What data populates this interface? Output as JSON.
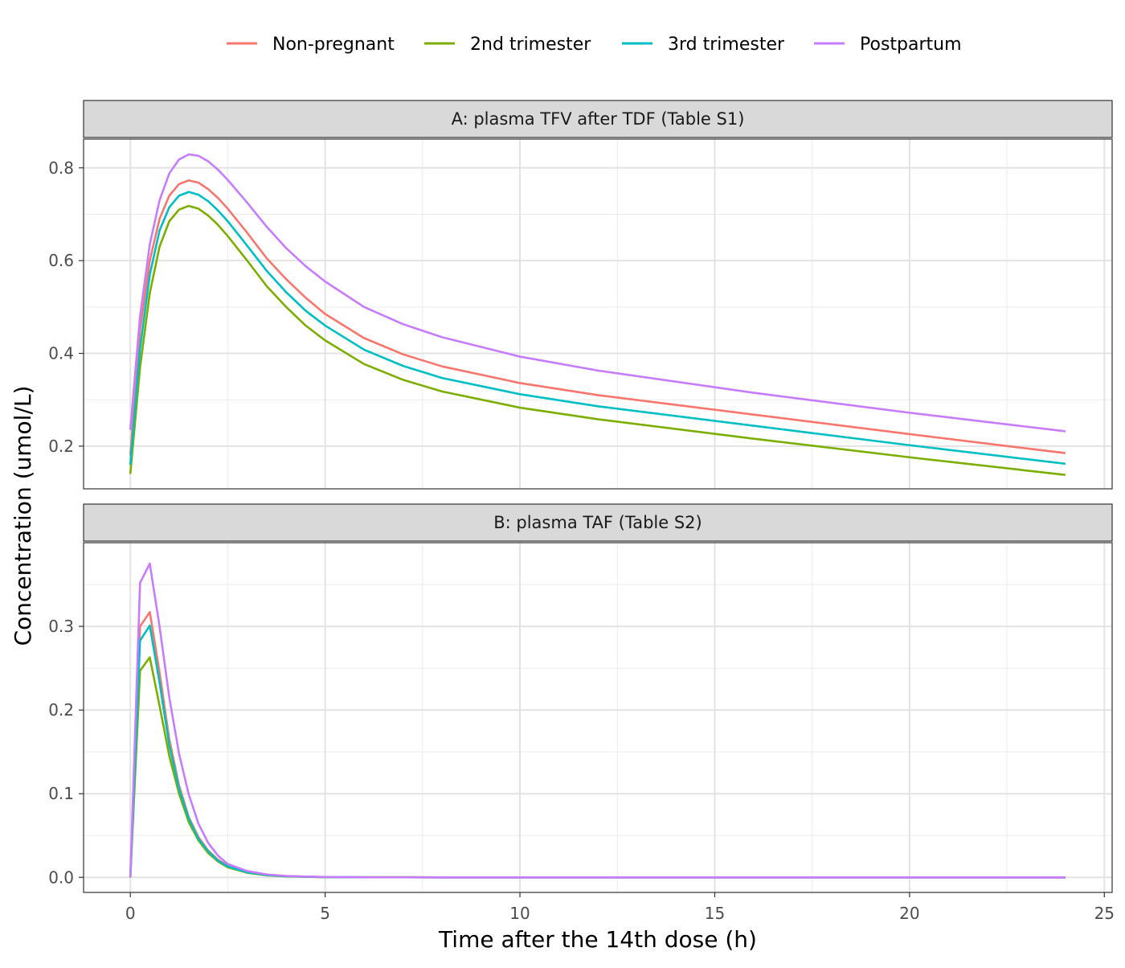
{
  "chart_data": {
    "type": "line",
    "xlabel": "Time after the 14th dose (h)",
    "ylabel": "Concentration (umol/L)",
    "xlim": [
      -1.2,
      25.2
    ],
    "x_ticks": [
      0,
      5,
      10,
      15,
      20,
      25
    ],
    "x_tick_labels": [
      "0",
      "5",
      "10",
      "15",
      "20",
      "25"
    ],
    "grid": true,
    "legend_position": "top",
    "legend": [
      {
        "name": "Non-pregnant",
        "color": "#F8766D"
      },
      {
        "name": "2nd trimester",
        "color": "#7CAE00"
      },
      {
        "name": "3rd trimester",
        "color": "#00BFC4"
      },
      {
        "name": "Postpartum",
        "color": "#C77CFF"
      }
    ],
    "panels": [
      {
        "title": "A: plasma TFV after TDF (Table S1)",
        "ylim": [
          0.108,
          0.862
        ],
        "y_ticks": [
          0.2,
          0.4,
          0.6,
          0.8
        ],
        "y_tick_labels": [
          "0.2",
          "0.4",
          "0.6",
          "0.8"
        ],
        "series": [
          {
            "name": "Non-pregnant",
            "color": "#F8766D",
            "x": [
              0,
              0.25,
              0.5,
              0.75,
              1,
              1.25,
              1.5,
              1.75,
              2,
              2.25,
              2.5,
              3,
              3.5,
              4,
              4.5,
              5,
              6,
              7,
              8,
              10,
              12,
              16,
              20,
              24
            ],
            "y": [
              0.18,
              0.45,
              0.6,
              0.69,
              0.74,
              0.765,
              0.773,
              0.768,
              0.754,
              0.735,
              0.712,
              0.66,
              0.605,
              0.56,
              0.52,
              0.485,
              0.433,
              0.398,
              0.372,
              0.336,
              0.31,
              0.268,
              0.226,
              0.185
            ]
          },
          {
            "name": "2nd trimester",
            "color": "#7CAE00",
            "x": [
              0,
              0.25,
              0.5,
              0.75,
              1,
              1.25,
              1.5,
              1.75,
              2,
              2.25,
              2.5,
              3,
              3.5,
              4,
              4.5,
              5,
              6,
              7,
              8,
              10,
              12,
              16,
              20,
              24
            ],
            "y": [
              0.14,
              0.37,
              0.53,
              0.63,
              0.685,
              0.71,
              0.718,
              0.712,
              0.697,
              0.677,
              0.653,
              0.6,
              0.545,
              0.5,
              0.46,
              0.428,
              0.377,
              0.343,
              0.318,
              0.283,
              0.258,
              0.216,
              0.176,
              0.138
            ]
          },
          {
            "name": "3rd trimester",
            "color": "#00BFC4",
            "x": [
              0,
              0.25,
              0.5,
              0.75,
              1,
              1.25,
              1.5,
              1.75,
              2,
              2.25,
              2.5,
              3,
              3.5,
              4,
              4.5,
              5,
              6,
              7,
              8,
              10,
              12,
              16,
              20,
              24
            ],
            "y": [
              0.16,
              0.41,
              0.57,
              0.665,
              0.715,
              0.74,
              0.748,
              0.742,
              0.728,
              0.708,
              0.685,
              0.632,
              0.578,
              0.532,
              0.492,
              0.46,
              0.408,
              0.373,
              0.347,
              0.312,
              0.286,
              0.244,
              0.202,
              0.162
            ]
          },
          {
            "name": "Postpartum",
            "color": "#C77CFF",
            "x": [
              0,
              0.25,
              0.5,
              0.75,
              1,
              1.25,
              1.5,
              1.75,
              2,
              2.25,
              2.5,
              3,
              3.5,
              4,
              4.5,
              5,
              6,
              7,
              8,
              10,
              12,
              16,
              20,
              24
            ],
            "y": [
              0.235,
              0.48,
              0.635,
              0.73,
              0.788,
              0.818,
              0.829,
              0.826,
              0.814,
              0.796,
              0.774,
              0.725,
              0.673,
              0.627,
              0.588,
              0.555,
              0.5,
              0.463,
              0.435,
              0.393,
              0.363,
              0.315,
              0.272,
              0.232
            ]
          }
        ]
      },
      {
        "title": "B: plasma TAF (Table S2)",
        "ylim": [
          -0.018,
          0.4
        ],
        "y_ticks": [
          0.0,
          0.1,
          0.2,
          0.3
        ],
        "y_tick_labels": [
          "0.0",
          "0.1",
          "0.2",
          "0.3"
        ],
        "series": [
          {
            "name": "Non-pregnant",
            "color": "#F8766D",
            "x": [
              0,
              0.25,
              0.5,
              0.75,
              1,
              1.25,
              1.5,
              1.75,
              2,
              2.25,
              2.5,
              3,
              3.5,
              4,
              5,
              6,
              8,
              12,
              16,
              20,
              24
            ],
            "y": [
              0,
              0.3,
              0.317,
              0.245,
              0.165,
              0.11,
              0.072,
              0.048,
              0.032,
              0.021,
              0.014,
              0.0065,
              0.003,
              0.0014,
              0.0003,
              0.0001,
              0,
              0,
              0,
              0,
              0
            ]
          },
          {
            "name": "2nd trimester",
            "color": "#7CAE00",
            "x": [
              0,
              0.25,
              0.5,
              0.75,
              1,
              1.25,
              1.5,
              1.75,
              2,
              2.25,
              2.5,
              3,
              3.5,
              4,
              5,
              6,
              8,
              12,
              16,
              20,
              24
            ],
            "y": [
              0,
              0.247,
              0.263,
              0.205,
              0.145,
              0.1,
              0.066,
              0.044,
              0.029,
              0.019,
              0.012,
              0.0055,
              0.0025,
              0.0011,
              0.0002,
              0.0001,
              0,
              0,
              0,
              0,
              0
            ]
          },
          {
            "name": "3rd trimester",
            "color": "#00BFC4",
            "x": [
              0,
              0.25,
              0.5,
              0.75,
              1,
              1.25,
              1.5,
              1.75,
              2,
              2.25,
              2.5,
              3,
              3.5,
              4,
              5,
              6,
              8,
              12,
              16,
              20,
              24
            ],
            "y": [
              0,
              0.283,
              0.301,
              0.233,
              0.158,
              0.106,
              0.07,
              0.046,
              0.031,
              0.02,
              0.013,
              0.006,
              0.0028,
              0.0013,
              0.0003,
              0.0001,
              0,
              0,
              0,
              0,
              0
            ]
          },
          {
            "name": "Postpartum",
            "color": "#C77CFF",
            "x": [
              0,
              0.25,
              0.5,
              0.75,
              1,
              1.25,
              1.5,
              1.75,
              2,
              2.25,
              2.5,
              3,
              3.5,
              4,
              5,
              6,
              8,
              12,
              16,
              20,
              24
            ],
            "y": [
              0,
              0.352,
              0.375,
              0.3,
              0.215,
              0.148,
              0.099,
              0.064,
              0.041,
              0.026,
              0.016,
              0.0075,
              0.0035,
              0.0016,
              0.0004,
              0.0001,
              0,
              0,
              0,
              0,
              0
            ]
          }
        ]
      }
    ]
  }
}
